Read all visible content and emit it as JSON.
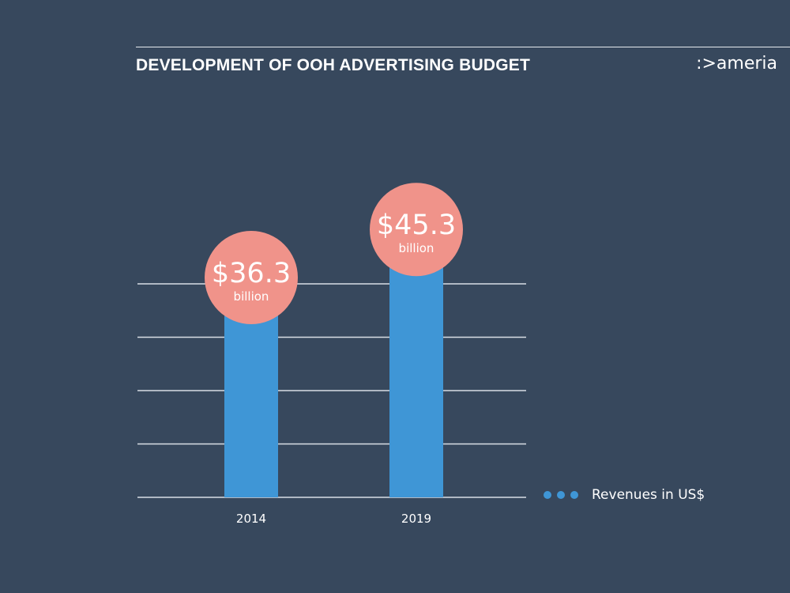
{
  "header": {
    "title": "DEVELOPMENT OF OOH ADVERTISING BUDGET",
    "logo_text": ":>ameria"
  },
  "legend": {
    "label": "Revenues in US$",
    "dot_color": "#3f96d6"
  },
  "colors": {
    "background": "#37485d",
    "bar": "#3f96d6",
    "bubble": "#f0938a",
    "gridline": "#d9dee5"
  },
  "chart_data": {
    "type": "bar",
    "title": "DEVELOPMENT OF OOH ADVERTISING BUDGET",
    "categories": [
      "2014",
      "2019"
    ],
    "series": [
      {
        "name": "Revenues in US$",
        "values": [
          36.3,
          45.3
        ]
      }
    ],
    "value_labels": [
      "$36.3",
      "$45.3"
    ],
    "value_unit_labels": [
      "billion",
      "billion"
    ],
    "unit": "US$ billion",
    "xlabel": "",
    "ylabel": "",
    "ylim": [
      0,
      50
    ],
    "gridlines": [
      0,
      10,
      20,
      30,
      40
    ],
    "grid": true,
    "legend_position": "right"
  }
}
